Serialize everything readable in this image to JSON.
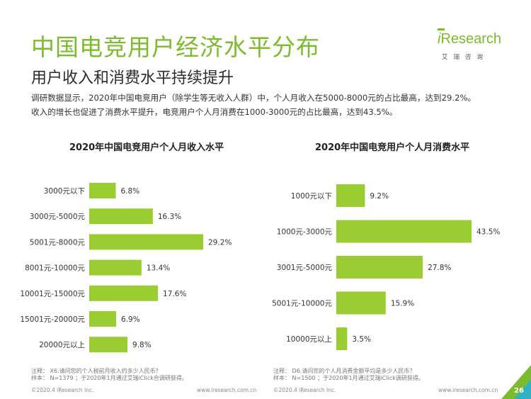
{
  "header": {
    "title": "中国电竞用户经济水平分布",
    "subtitle": "用户收入和消费水平持续提升",
    "desc_line1": "调研数据显示，2020年中国电竞用户（除学生等无收入人群）中，个人月收入在5000-8000元的占比最高，达到29.2%。",
    "desc_line2": "收入的增长也促进了消费水平提升，电竞用户个人月消费在1000-3000元的占比最高，达到43.5%。"
  },
  "logo": {
    "brand_i": "i",
    "brand_rest": "Research",
    "sub": "艾瑞咨询"
  },
  "colors": {
    "accent": "#7dbb2e",
    "bar": "#9acd32",
    "teal": "#2fb3c4"
  },
  "chart_data": [
    {
      "type": "bar",
      "orientation": "horizontal",
      "title": "2020年中国电竞用户个人月收入水平",
      "categories": [
        "3000元以下",
        "3000元-5000元",
        "5001元-8000元",
        "8001元-10000元",
        "10001元-15000元",
        "15001元-20000元",
        "20000元以上"
      ],
      "values": [
        6.8,
        16.3,
        29.2,
        13.4,
        17.6,
        6.9,
        9.8
      ],
      "value_suffix": "%"
    },
    {
      "type": "bar",
      "orientation": "horizontal",
      "title": "2020年中国电竞用户个人月消费水平",
      "categories": [
        "1000元以下",
        "1000元-3000元",
        "3001元-5000元",
        "5001元-10000元",
        "10000元以上"
      ],
      "values": [
        9.2,
        43.5,
        27.8,
        15.9,
        3.5
      ],
      "value_suffix": "%"
    }
  ],
  "notes": {
    "left_line1": "注释：  X6.请问您的个人税前月收入约多少人民币？",
    "left_line2": "样本：  N=1379 ；于2020年1月通过艾瑞iClick合调研获得。",
    "right_line1": "注释：  D6.请问您的个人月消费金额平均是多少人民币？",
    "right_line2": "样本：  N=1500 ；于2020年1月通过艾瑞iClick调研获得。"
  },
  "footer": {
    "copyright": "©2020.4 iResearch Inc.",
    "website": "www.iresearch.com.cn",
    "page_number": "26"
  }
}
